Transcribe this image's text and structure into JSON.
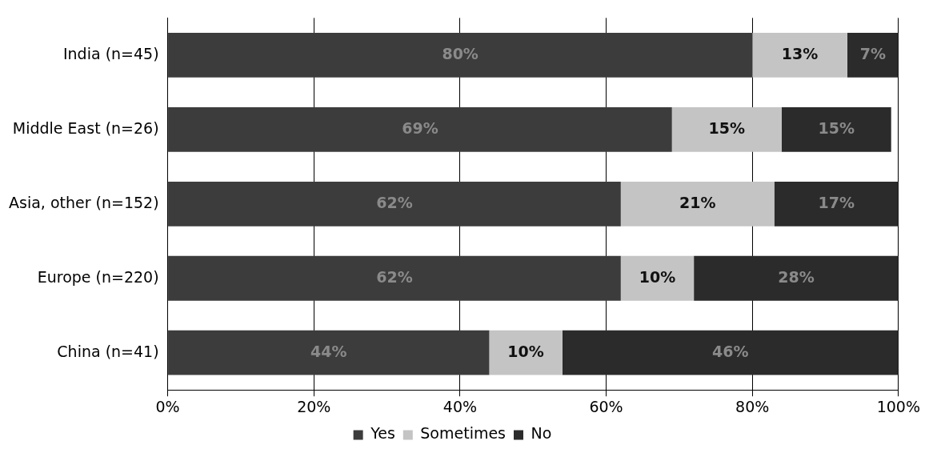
{
  "chart_data": {
    "type": "bar",
    "orientation": "horizontal",
    "stacked": true,
    "categories": [
      "India (n=45)",
      "Middle East (n=26)",
      "Asia, other (n=152)",
      "Europe (n=220)",
      "China (n=41)"
    ],
    "series": [
      {
        "name": "Yes",
        "color": "#3c3c3c",
        "values": [
          80,
          69,
          62,
          62,
          44
        ],
        "value_labels": [
          "80%",
          "69%",
          "62%",
          "62%",
          "44%"
        ]
      },
      {
        "name": "Sometimes",
        "color": "#c4c4c4",
        "values": [
          13,
          15,
          21,
          10,
          10
        ],
        "value_labels": [
          "13%",
          "15%",
          "21%",
          "10%",
          "10%"
        ]
      },
      {
        "name": "No",
        "color": "#2b2b2b",
        "values": [
          7,
          15,
          17,
          28,
          46
        ],
        "value_labels": [
          "7%",
          "15%",
          "17%",
          "28%",
          "46%"
        ]
      }
    ],
    "xlim": [
      0,
      100
    ],
    "xticks": [
      {
        "value": 0,
        "label": "0%"
      },
      {
        "value": 20,
        "label": "20%"
      },
      {
        "value": 40,
        "label": "40%"
      },
      {
        "value": 60,
        "label": "60%"
      },
      {
        "value": 80,
        "label": "80%"
      },
      {
        "value": 100,
        "label": "100%"
      }
    ],
    "grid": "x",
    "legend": "bottom"
  }
}
